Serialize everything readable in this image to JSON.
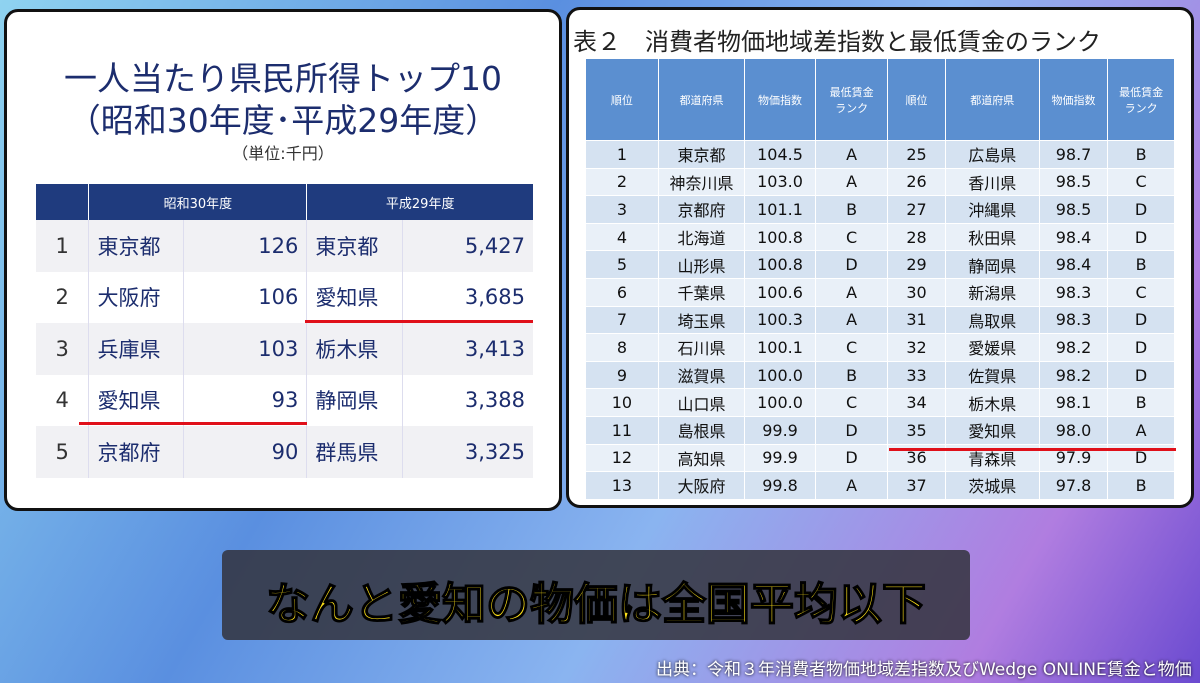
{
  "left_panel": {
    "title_lines": [
      "一人当たり県民所得トップ10",
      "（昭和30年度･平成29年度）"
    ],
    "unit": "（単位:千円）",
    "table": {
      "headers": [
        "昭和30年度",
        "平成29年度"
      ],
      "rows": [
        [
          "1",
          "東京都",
          "126",
          "東京都",
          "5,427"
        ],
        [
          "2",
          "大阪府",
          "106",
          "愛知県",
          "3,685"
        ],
        [
          "3",
          "兵庫県",
          "103",
          "栃木県",
          "3,413"
        ],
        [
          "4",
          "愛知県",
          "93",
          "静岡県",
          "3,388"
        ],
        [
          "5",
          "京都府",
          "90",
          "群馬県",
          "3,325"
        ]
      ]
    }
  },
  "right_panel": {
    "title": "表２　消費者物価地域差指数と最低賃金のランク",
    "table": {
      "headers": [
        "順位",
        "都道府県",
        "物価指数",
        "最低賃金\nランク",
        "順位",
        "都道府県",
        "物価指数",
        "最低賃金\nランク"
      ],
      "rows": [
        [
          "1",
          "東京都",
          "104.5",
          "A",
          "25",
          "広島県",
          "98.7",
          "B"
        ],
        [
          "2",
          "神奈川県",
          "103.0",
          "A",
          "26",
          "香川県",
          "98.5",
          "C"
        ],
        [
          "3",
          "京都府",
          "101.1",
          "B",
          "27",
          "沖縄県",
          "98.5",
          "D"
        ],
        [
          "4",
          "北海道",
          "100.8",
          "C",
          "28",
          "秋田県",
          "98.4",
          "D"
        ],
        [
          "5",
          "山形県",
          "100.8",
          "D",
          "29",
          "静岡県",
          "98.4",
          "B"
        ],
        [
          "6",
          "千葉県",
          "100.6",
          "A",
          "30",
          "新潟県",
          "98.3",
          "C"
        ],
        [
          "7",
          "埼玉県",
          "100.3",
          "A",
          "31",
          "鳥取県",
          "98.3",
          "D"
        ],
        [
          "8",
          "石川県",
          "100.1",
          "C",
          "32",
          "愛媛県",
          "98.2",
          "D"
        ],
        [
          "9",
          "滋賀県",
          "100.0",
          "B",
          "33",
          "佐賀県",
          "98.2",
          "D"
        ],
        [
          "10",
          "山口県",
          "100.0",
          "C",
          "34",
          "栃木県",
          "98.1",
          "B"
        ],
        [
          "11",
          "島根県",
          "99.9",
          "D",
          "35",
          "愛知県",
          "98.0",
          "A"
        ],
        [
          "12",
          "高知県",
          "99.9",
          "D",
          "36",
          "青森県",
          "97.9",
          "D"
        ],
        [
          "13",
          "大阪府",
          "99.8",
          "A",
          "37",
          "茨城県",
          "97.8",
          "B"
        ]
      ]
    }
  },
  "caption": "なんと愛知の物価は全国平均以下",
  "source": "出典：令和３年消費者物価地域差指数及びWedge ONLINE賃金と物価"
}
